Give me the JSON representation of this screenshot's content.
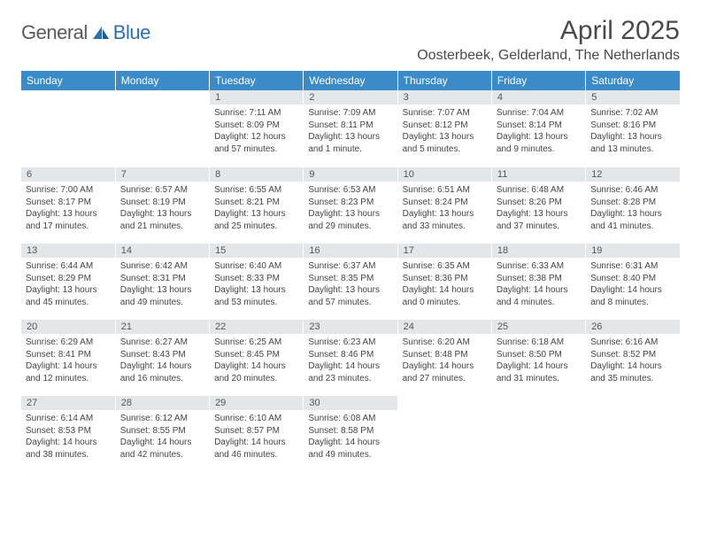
{
  "logo": {
    "text_gray": "General",
    "text_blue": "Blue"
  },
  "title": "April 2025",
  "location": "Oosterbeek, Gelderland, The Netherlands",
  "colors": {
    "header_bg": "#3b8bc9",
    "header_text": "#ffffff",
    "daynum_bg": "#e4e7ea",
    "body_text": "#444444",
    "logo_gray": "#5a5a5a",
    "logo_blue": "#2a6fb5"
  },
  "weekdays": [
    "Sunday",
    "Monday",
    "Tuesday",
    "Wednesday",
    "Thursday",
    "Friday",
    "Saturday"
  ],
  "layout": {
    "first_weekday_index": 2,
    "days_in_month": 30
  },
  "days": {
    "1": {
      "sunrise": "7:11 AM",
      "sunset": "8:09 PM",
      "daylight": "12 hours and 57 minutes."
    },
    "2": {
      "sunrise": "7:09 AM",
      "sunset": "8:11 PM",
      "daylight": "13 hours and 1 minute."
    },
    "3": {
      "sunrise": "7:07 AM",
      "sunset": "8:12 PM",
      "daylight": "13 hours and 5 minutes."
    },
    "4": {
      "sunrise": "7:04 AM",
      "sunset": "8:14 PM",
      "daylight": "13 hours and 9 minutes."
    },
    "5": {
      "sunrise": "7:02 AM",
      "sunset": "8:16 PM",
      "daylight": "13 hours and 13 minutes."
    },
    "6": {
      "sunrise": "7:00 AM",
      "sunset": "8:17 PM",
      "daylight": "13 hours and 17 minutes."
    },
    "7": {
      "sunrise": "6:57 AM",
      "sunset": "8:19 PM",
      "daylight": "13 hours and 21 minutes."
    },
    "8": {
      "sunrise": "6:55 AM",
      "sunset": "8:21 PM",
      "daylight": "13 hours and 25 minutes."
    },
    "9": {
      "sunrise": "6:53 AM",
      "sunset": "8:23 PM",
      "daylight": "13 hours and 29 minutes."
    },
    "10": {
      "sunrise": "6:51 AM",
      "sunset": "8:24 PM",
      "daylight": "13 hours and 33 minutes."
    },
    "11": {
      "sunrise": "6:48 AM",
      "sunset": "8:26 PM",
      "daylight": "13 hours and 37 minutes."
    },
    "12": {
      "sunrise": "6:46 AM",
      "sunset": "8:28 PM",
      "daylight": "13 hours and 41 minutes."
    },
    "13": {
      "sunrise": "6:44 AM",
      "sunset": "8:29 PM",
      "daylight": "13 hours and 45 minutes."
    },
    "14": {
      "sunrise": "6:42 AM",
      "sunset": "8:31 PM",
      "daylight": "13 hours and 49 minutes."
    },
    "15": {
      "sunrise": "6:40 AM",
      "sunset": "8:33 PM",
      "daylight": "13 hours and 53 minutes."
    },
    "16": {
      "sunrise": "6:37 AM",
      "sunset": "8:35 PM",
      "daylight": "13 hours and 57 minutes."
    },
    "17": {
      "sunrise": "6:35 AM",
      "sunset": "8:36 PM",
      "daylight": "14 hours and 0 minutes."
    },
    "18": {
      "sunrise": "6:33 AM",
      "sunset": "8:38 PM",
      "daylight": "14 hours and 4 minutes."
    },
    "19": {
      "sunrise": "6:31 AM",
      "sunset": "8:40 PM",
      "daylight": "14 hours and 8 minutes."
    },
    "20": {
      "sunrise": "6:29 AM",
      "sunset": "8:41 PM",
      "daylight": "14 hours and 12 minutes."
    },
    "21": {
      "sunrise": "6:27 AM",
      "sunset": "8:43 PM",
      "daylight": "14 hours and 16 minutes."
    },
    "22": {
      "sunrise": "6:25 AM",
      "sunset": "8:45 PM",
      "daylight": "14 hours and 20 minutes."
    },
    "23": {
      "sunrise": "6:23 AM",
      "sunset": "8:46 PM",
      "daylight": "14 hours and 23 minutes."
    },
    "24": {
      "sunrise": "6:20 AM",
      "sunset": "8:48 PM",
      "daylight": "14 hours and 27 minutes."
    },
    "25": {
      "sunrise": "6:18 AM",
      "sunset": "8:50 PM",
      "daylight": "14 hours and 31 minutes."
    },
    "26": {
      "sunrise": "6:16 AM",
      "sunset": "8:52 PM",
      "daylight": "14 hours and 35 minutes."
    },
    "27": {
      "sunrise": "6:14 AM",
      "sunset": "8:53 PM",
      "daylight": "14 hours and 38 minutes."
    },
    "28": {
      "sunrise": "6:12 AM",
      "sunset": "8:55 PM",
      "daylight": "14 hours and 42 minutes."
    },
    "29": {
      "sunrise": "6:10 AM",
      "sunset": "8:57 PM",
      "daylight": "14 hours and 46 minutes."
    },
    "30": {
      "sunrise": "6:08 AM",
      "sunset": "8:58 PM",
      "daylight": "14 hours and 49 minutes."
    }
  },
  "labels": {
    "sunrise": "Sunrise:",
    "sunset": "Sunset:",
    "daylight": "Daylight:"
  }
}
